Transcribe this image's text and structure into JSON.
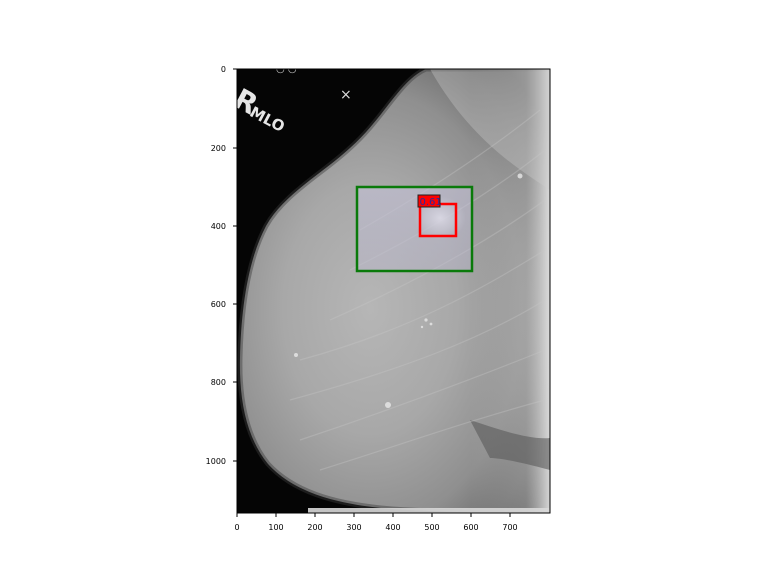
{
  "image": {
    "overlay_label_left": "R",
    "overlay_label_view": "MLO",
    "overlay_marker": "×"
  },
  "axes": {
    "x_ticks": [
      "0",
      "100",
      "200",
      "300",
      "400",
      "500",
      "600",
      "700"
    ],
    "y_ticks": [
      "0",
      "200",
      "400",
      "600",
      "800",
      "1000"
    ]
  },
  "annotations": {
    "green_box_color": "#0a7a0a",
    "red_box_color": "#ff0000",
    "red_box_label": "0.61"
  }
}
